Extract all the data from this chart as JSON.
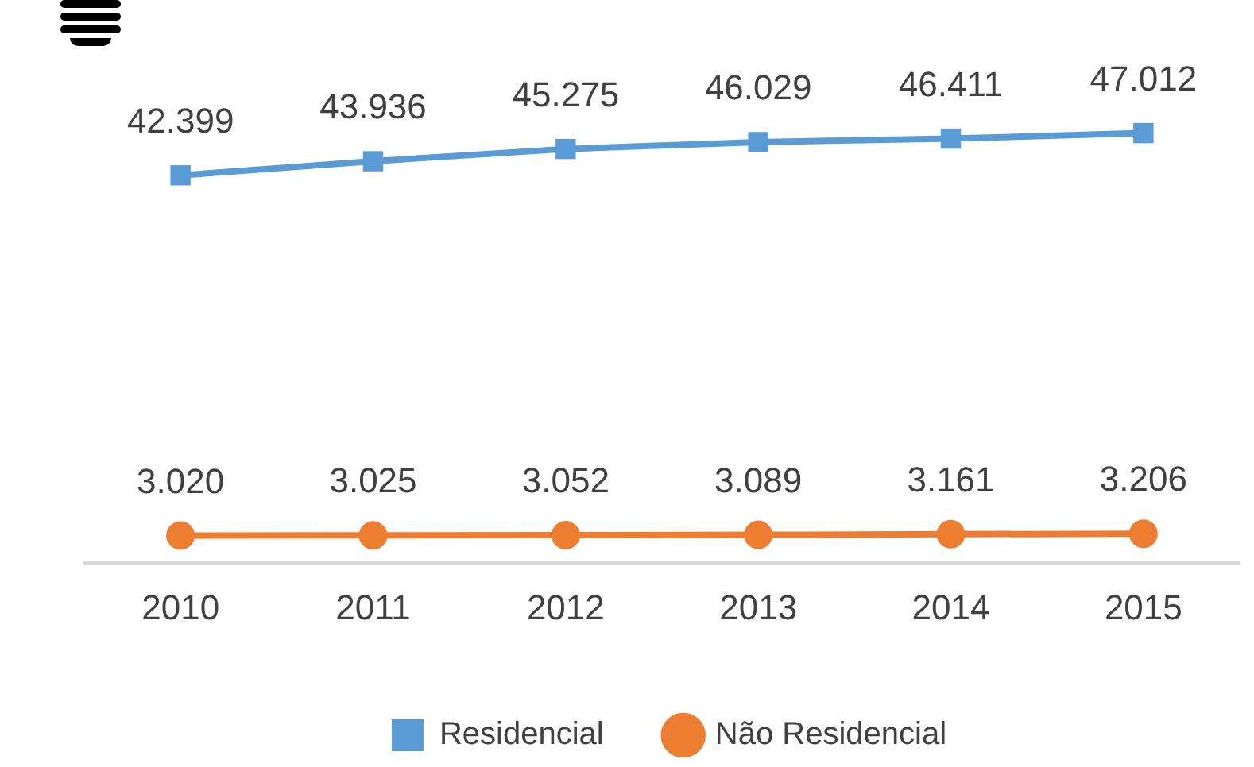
{
  "chart_data": {
    "type": "line",
    "categories": [
      "2010",
      "2011",
      "2012",
      "2013",
      "2014",
      "2015"
    ],
    "series": [
      {
        "name": "Residencial",
        "color": "#5b9bd5",
        "marker": "square",
        "values": [
          42399,
          43936,
          45275,
          46029,
          46411,
          47012
        ],
        "value_labels": [
          "42.399",
          "43.936",
          "45.275",
          "46.029",
          "46.411",
          "47.012"
        ]
      },
      {
        "name": "Não Residencial",
        "color": "#ed7d31",
        "marker": "circle",
        "values": [
          3020,
          3025,
          3052,
          3089,
          3161,
          3206
        ],
        "value_labels": [
          "3.020",
          "3.025",
          "3.052",
          "3.089",
          "3.161",
          "3.206"
        ]
      }
    ],
    "tick_labels": "x",
    "grid": false,
    "legend": "bottom",
    "line_style": "solid"
  }
}
